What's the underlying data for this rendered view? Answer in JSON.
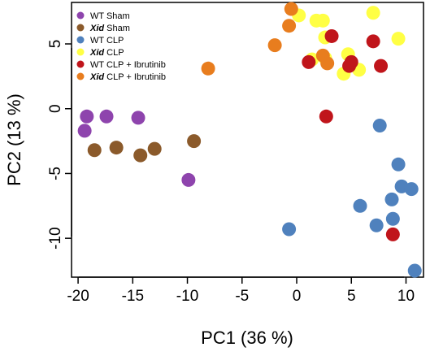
{
  "chart_data": {
    "type": "scatter",
    "xlabel": "PC1 (36 %)",
    "ylabel": "PC2 (13 %)",
    "xlim": [
      -20.6,
      11.6
    ],
    "ylim": [
      -13.0,
      8.2
    ],
    "x_ticks": [
      "-20",
      "-15",
      "-10",
      "-5",
      "0",
      "5",
      "10"
    ],
    "y_ticks": [
      "-10",
      "-5",
      "0",
      "5"
    ],
    "grid": false,
    "legend_position": "top-left",
    "series": [
      {
        "name": "WT Sham",
        "name_parts": [
          {
            "text": "WT",
            "italic": false
          },
          {
            "text": " Sham",
            "italic": false
          }
        ],
        "color": "#8e44ad",
        "points": [
          [
            -19.2,
            -0.6
          ],
          [
            -19.4,
            -1.7
          ],
          [
            -17.4,
            -0.6
          ],
          [
            -14.5,
            -0.7
          ],
          [
            -9.9,
            -5.5
          ]
        ]
      },
      {
        "name": "Xid Sham",
        "name_parts": [
          {
            "text": "Xid",
            "italic": true
          },
          {
            "text": " Sham",
            "italic": false
          }
        ],
        "color": "#8b5a2b",
        "points": [
          [
            -18.5,
            -3.2
          ],
          [
            -16.5,
            -3.0
          ],
          [
            -14.3,
            -3.6
          ],
          [
            -13.0,
            -3.1
          ],
          [
            -9.4,
            -2.5
          ]
        ]
      },
      {
        "name": "WT CLP",
        "name_parts": [
          {
            "text": "WT",
            "italic": false
          },
          {
            "text": " CLP",
            "italic": false
          }
        ],
        "color": "#4f81bd",
        "points": [
          [
            -0.7,
            -9.3
          ],
          [
            5.8,
            -7.5
          ],
          [
            7.6,
            -1.3
          ],
          [
            7.3,
            -9.0
          ],
          [
            8.7,
            -7.0
          ],
          [
            8.8,
            -8.5
          ],
          [
            9.3,
            -4.3
          ],
          [
            9.6,
            -6.0
          ],
          [
            10.5,
            -6.2
          ],
          [
            10.8,
            -12.5
          ]
        ]
      },
      {
        "name": "Xid CLP",
        "name_parts": [
          {
            "text": "Xid",
            "italic": true
          },
          {
            "text": " CLP",
            "italic": false
          }
        ],
        "color": "#ffff44",
        "points": [
          [
            0.2,
            7.2
          ],
          [
            1.8,
            6.8
          ],
          [
            2.4,
            6.8
          ],
          [
            2.6,
            5.5
          ],
          [
            1.4,
            3.8
          ],
          [
            2.6,
            3.9
          ],
          [
            4.7,
            4.2
          ],
          [
            5.7,
            3.0
          ],
          [
            4.3,
            2.7
          ],
          [
            7.0,
            7.4
          ],
          [
            9.3,
            5.4
          ]
        ]
      },
      {
        "name": "WT CLP + Ibrutinib",
        "name_parts": [
          {
            "text": "WT",
            "italic": false
          },
          {
            "text": " CLP + Ibrutinib",
            "italic": false
          }
        ],
        "color": "#c0151b",
        "points": [
          [
            1.1,
            3.6
          ],
          [
            3.2,
            5.6
          ],
          [
            4.8,
            3.3
          ],
          [
            5.0,
            3.6
          ],
          [
            7.0,
            5.2
          ],
          [
            7.7,
            3.3
          ],
          [
            2.7,
            -0.6
          ],
          [
            8.8,
            -9.7
          ]
        ]
      },
      {
        "name": "Xid CLP + Ibrutinib",
        "name_parts": [
          {
            "text": "Xid",
            "italic": true
          },
          {
            "text": " CLP + Ibrutinib",
            "italic": false
          }
        ],
        "color": "#e87d1e",
        "points": [
          [
            -0.5,
            7.7
          ],
          [
            -0.7,
            6.4
          ],
          [
            -2.0,
            4.9
          ],
          [
            -8.1,
            3.1
          ],
          [
            2.4,
            4.1
          ],
          [
            2.8,
            3.5
          ]
        ]
      }
    ]
  }
}
